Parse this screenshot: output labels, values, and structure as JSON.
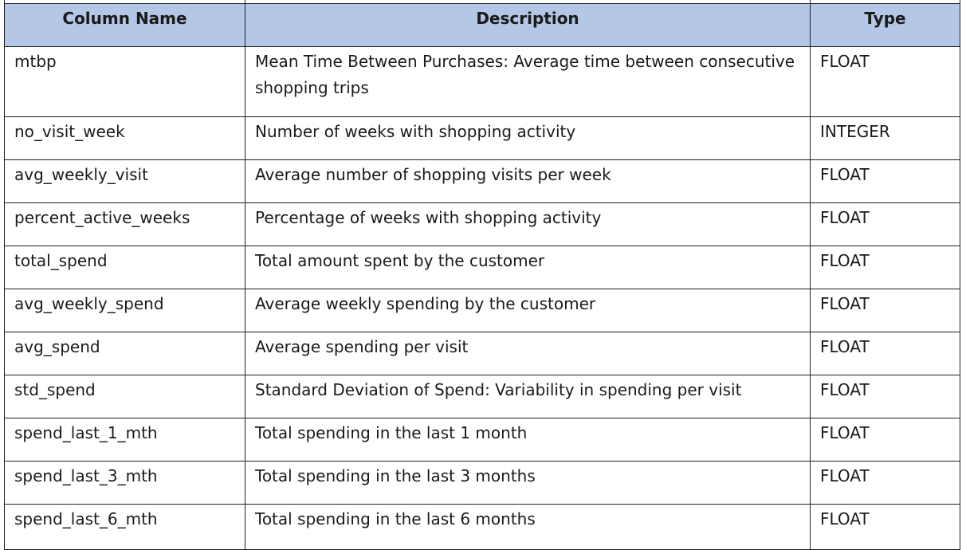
{
  "table": {
    "headers": {
      "column_name": "Column Name",
      "description": "Description",
      "type": "Type"
    },
    "rows": [
      {
        "column_name": "mtbp",
        "description": "Mean Time Between Purchases: Average time between consecutive shopping trips",
        "type": "FLOAT"
      },
      {
        "column_name": "no_visit_week",
        "description": "Number of weeks with shopping activity",
        "type": "INTEGER"
      },
      {
        "column_name": "avg_weekly_visit",
        "description": "Average number of shopping visits per week",
        "type": "FLOAT"
      },
      {
        "column_name": "percent_active_weeks",
        "description": "Percentage of weeks with shopping activity",
        "type": "FLOAT"
      },
      {
        "column_name": "total_spend",
        "description": "Total amount spent by the customer",
        "type": "FLOAT"
      },
      {
        "column_name": "avg_weekly_spend",
        "description": "Average weekly spending by the customer",
        "type": "FLOAT"
      },
      {
        "column_name": "avg_spend",
        "description": "Average spending per visit",
        "type": "FLOAT"
      },
      {
        "column_name": "std_spend",
        "description": "Standard Deviation of Spend: Variability in spending per visit",
        "type": "FLOAT"
      },
      {
        "column_name": "spend_last_1_mth",
        "description": "Total spending in the last 1 month",
        "type": "FLOAT"
      },
      {
        "column_name": "spend_last_3_mth",
        "description": "Total spending in the last 3 months",
        "type": "FLOAT"
      },
      {
        "column_name": "spend_last_6_mth",
        "description": "Total spending in the last 6 months",
        "type": "FLOAT"
      }
    ]
  },
  "colors": {
    "header_background": "#b4c7e7",
    "border": "#1f1f1f",
    "text": "#1a1a1a"
  }
}
